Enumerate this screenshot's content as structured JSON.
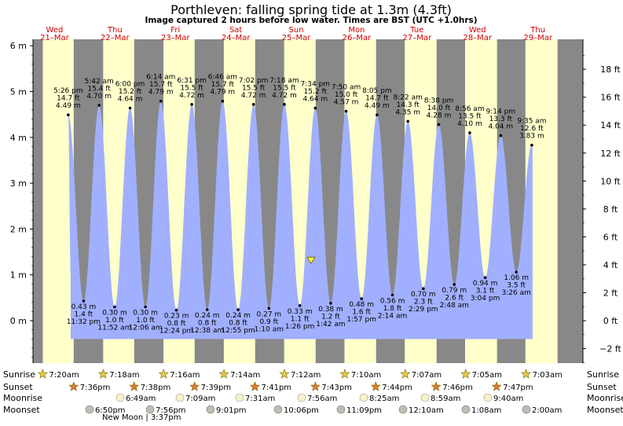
{
  "title": "Porthleven: falling  spring tide at 1.3m (4.3ft)",
  "subtitle": "Image captured 2 hours before low water. Times are BST (UTC +1.0hrs)",
  "colors": {
    "day": "#ffffcc",
    "night": "#888888",
    "water": "#a0b0ff",
    "date": "#cc0000"
  },
  "chart_data": {
    "type": "area",
    "title": "Porthleven: falling  spring tide at 1.3m (4.3ft)",
    "subtitle": "Image captured 2 hours before low water. Times are BST (UTC +1.0hrs)",
    "left_axis": {
      "unit": "m",
      "ylim": [
        -1,
        6
      ],
      "ticks": [
        {
          "v": 6,
          "label": "6 m"
        },
        {
          "v": 5,
          "label": "5 m"
        },
        {
          "v": 4,
          "label": "4 m"
        },
        {
          "v": 3,
          "label": "3 m"
        },
        {
          "v": 2,
          "label": "2 m"
        },
        {
          "v": 1,
          "label": "1 m"
        },
        {
          "v": 0,
          "label": "0 m"
        }
      ]
    },
    "right_axis": {
      "unit": "ft",
      "ticks": [
        "18 ft",
        "16 ft",
        "14 ft",
        "12 ft",
        "10 ft",
        "8 ft",
        "6 ft",
        "4 ft",
        "2 ft",
        "0 ft",
        "−2 ft"
      ]
    },
    "days": [
      {
        "dow": "Wed",
        "date": "21–Mar"
      },
      {
        "dow": "Thu",
        "date": "22–Mar"
      },
      {
        "dow": "Fri",
        "date": "23–Mar"
      },
      {
        "dow": "Sat",
        "date": "24–Mar"
      },
      {
        "dow": "Sun",
        "date": "25–Mar"
      },
      {
        "dow": "Mon",
        "date": "26–Mar"
      },
      {
        "dow": "Tue",
        "date": "27–Mar"
      },
      {
        "dow": "Wed",
        "date": "28–Mar"
      },
      {
        "dow": "Thu",
        "date": "29–Mar"
      }
    ],
    "tides": [
      {
        "type": "high",
        "time": "5:26 pm",
        "m": "4.49",
        "ft": "14.7 ft"
      },
      {
        "type": "low",
        "time": "11:32 pm",
        "m": "0.43",
        "ft": "1.4 ft"
      },
      {
        "type": "high",
        "time": "5:42 am",
        "m": "4.70",
        "ft": "15.4 ft"
      },
      {
        "type": "low",
        "time": "11:52 am",
        "m": "0.30",
        "ft": "1.0 ft"
      },
      {
        "type": "high",
        "time": "6:00 pm",
        "m": "4.64",
        "ft": "15.2 ft"
      },
      {
        "type": "low",
        "time": "12:06 am",
        "m": "0.30",
        "ft": "1.0 ft"
      },
      {
        "type": "high",
        "time": "6:14 am",
        "m": "4.79",
        "ft": "15.7 ft"
      },
      {
        "type": "low",
        "time": "12:24 pm",
        "m": "0.23",
        "ft": "0.8 ft"
      },
      {
        "type": "high",
        "time": "6:31 pm",
        "m": "4.72",
        "ft": "15.5 ft"
      },
      {
        "type": "low",
        "time": "12:38 am",
        "m": "0.24",
        "ft": "0.8 ft"
      },
      {
        "type": "high",
        "time": "6:46 am",
        "m": "4.79",
        "ft": "15.7 ft"
      },
      {
        "type": "low",
        "time": "12:55 pm",
        "m": "0.24",
        "ft": "0.8 ft"
      },
      {
        "type": "high",
        "time": "7:02 pm",
        "m": "4.72",
        "ft": "15.5 ft"
      },
      {
        "type": "low",
        "time": "1:10 am",
        "m": "0.27",
        "ft": "0.9 ft"
      },
      {
        "type": "high",
        "time": "7:18 am",
        "m": "4.72",
        "ft": "15.5 ft"
      },
      {
        "type": "low",
        "time": "1:26 pm",
        "m": "0.33",
        "ft": "1.1 ft"
      },
      {
        "type": "high",
        "time": "7:34 pm",
        "m": "4.64",
        "ft": "15.2 ft"
      },
      {
        "type": "low",
        "time": "1:42 am",
        "m": "0.38",
        "ft": "1.2 ft"
      },
      {
        "type": "high",
        "time": "7:50 am",
        "m": "4.57",
        "ft": "15.0 ft"
      },
      {
        "type": "low",
        "time": "1:57 pm",
        "m": "0.48",
        "ft": "1.6 ft"
      },
      {
        "type": "high",
        "time": "8:05 pm",
        "m": "4.49",
        "ft": "14.7 ft"
      },
      {
        "type": "low",
        "time": "2:14 am",
        "m": "0.56",
        "ft": "1.8 ft"
      },
      {
        "type": "high",
        "time": "8:22 am",
        "m": "4.35",
        "ft": "14.3 ft"
      },
      {
        "type": "low",
        "time": "2:29 pm",
        "m": "0.70",
        "ft": "2.3 ft"
      },
      {
        "type": "high",
        "time": "8:38 pm",
        "m": "4.28",
        "ft": "14.0 ft"
      },
      {
        "type": "low",
        "time": "2:48 am",
        "m": "0.79",
        "ft": "2.6 ft"
      },
      {
        "type": "high",
        "time": "8:56 am",
        "m": "4.10",
        "ft": "13.5 ft"
      },
      {
        "type": "low",
        "time": "3:04 pm",
        "m": "0.94",
        "ft": "3.1 ft"
      },
      {
        "type": "high",
        "time": "9:14 pm",
        "m": "4.04",
        "ft": "13.3 ft"
      },
      {
        "type": "low",
        "time": "3:26 am",
        "m": "1.06",
        "ft": "3.5 ft"
      },
      {
        "type": "high",
        "time": "9:35 am",
        "m": "3.83",
        "ft": "12.6 ft"
      }
    ],
    "current_level_m": 1.3,
    "sunrise": [
      "7:20am",
      "7:18am",
      "7:16am",
      "7:14am",
      "7:12am",
      "7:10am",
      "7:07am",
      "7:05am",
      "7:03am"
    ],
    "sunset": [
      "7:36pm",
      "7:38pm",
      "7:39pm",
      "7:41pm",
      "7:43pm",
      "7:44pm",
      "7:46pm",
      "7:47pm"
    ],
    "moonrise": [
      "6:49am",
      "7:09am",
      "7:31am",
      "7:56am",
      "8:25am",
      "8:59am",
      "9:40am"
    ],
    "moonset": [
      "6:50pm",
      "7:56pm",
      "9:01pm",
      "10:06pm",
      "11:09pm",
      "12:10am",
      "1:08am",
      "2:00am"
    ],
    "moon_phase": "New Moon | 3:37pm"
  },
  "labels": {
    "sunrise": "Sunrise",
    "sunset": "Sunset",
    "moonrise": "Moonrise",
    "moonset": "Moonset"
  }
}
